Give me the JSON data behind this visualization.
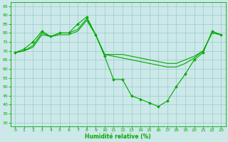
{
  "xlabel": "Humidité relative (%)",
  "bg_color": "#cce8e8",
  "grid_color": "#99cccc",
  "line_color": "#00aa00",
  "xlim": [
    -0.5,
    23.5
  ],
  "ylim": [
    28,
    97
  ],
  "yticks": [
    30,
    35,
    40,
    45,
    50,
    55,
    60,
    65,
    70,
    75,
    80,
    85,
    90,
    95
  ],
  "xticks": [
    0,
    1,
    2,
    3,
    4,
    5,
    6,
    7,
    8,
    9,
    10,
    11,
    12,
    13,
    14,
    15,
    16,
    17,
    18,
    19,
    20,
    21,
    22,
    23
  ],
  "line1_marker": {
    "x": [
      0,
      1,
      2,
      3,
      4,
      5,
      6,
      7,
      8,
      9,
      10,
      11,
      12,
      13,
      14,
      15,
      16,
      17,
      18,
      19,
      20,
      21,
      22,
      23
    ],
    "y": [
      69,
      71,
      75,
      81,
      78,
      80,
      80,
      85,
      89,
      79,
      67,
      54,
      54,
      45,
      43,
      41,
      39,
      42,
      50,
      57,
      65,
      69,
      81,
      79
    ]
  },
  "line2": {
    "x": [
      0,
      1,
      2,
      3,
      4,
      5,
      6,
      7,
      8,
      9,
      10,
      11,
      12,
      13,
      14,
      15,
      16,
      17,
      18,
      19,
      20,
      21,
      22,
      23
    ],
    "y": [
      69,
      70,
      73,
      80,
      78,
      80,
      80,
      82,
      88,
      79,
      68,
      67,
      66,
      65,
      64,
      63,
      62,
      61,
      61,
      63,
      66,
      70,
      80,
      79
    ]
  },
  "line3": {
    "x": [
      0,
      1,
      2,
      3,
      4,
      5,
      6,
      7,
      8,
      9,
      10,
      11,
      12,
      13,
      14,
      15,
      16,
      17,
      18,
      19,
      20,
      21,
      22,
      23
    ],
    "y": [
      69,
      70,
      72,
      79,
      78,
      79,
      79,
      81,
      87,
      79,
      68,
      68,
      68,
      67,
      66,
      65,
      64,
      63,
      63,
      65,
      67,
      70,
      80,
      79
    ]
  }
}
